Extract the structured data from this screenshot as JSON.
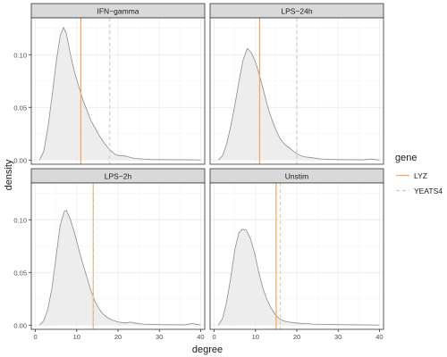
{
  "chart_data": {
    "type": "area",
    "xlabel": "degree",
    "ylabel": "density",
    "xlim": [
      -1,
      41
    ],
    "ylim": [
      -0.004,
      0.135
    ],
    "x_ticks": [
      0,
      10,
      20,
      30,
      40
    ],
    "y_ticks": [
      0.0,
      0.05,
      0.1
    ],
    "y_tick_labels": [
      "0.00",
      "0.05",
      "0.10"
    ],
    "grid": true,
    "legend": {
      "title": "gene",
      "placement": "right",
      "entries": [
        {
          "name": "LYZ",
          "color": "#F5A55A",
          "dash": "solid"
        },
        {
          "name": "YEATS4",
          "color": "#C5D9AE",
          "dash": "dashed"
        }
      ]
    },
    "panels": [
      {
        "title": "IFN−gamma",
        "density": [
          [
            1,
            0
          ],
          [
            2,
            0.008
          ],
          [
            3,
            0.03
          ],
          [
            4,
            0.06
          ],
          [
            5,
            0.092
          ],
          [
            6,
            0.118
          ],
          [
            6.8,
            0.126
          ],
          [
            7.5,
            0.12
          ],
          [
            8.5,
            0.1
          ],
          [
            9.5,
            0.083
          ],
          [
            10.5,
            0.07
          ],
          [
            11.5,
            0.057
          ],
          [
            12.5,
            0.047
          ],
          [
            13.5,
            0.037
          ],
          [
            14.5,
            0.03
          ],
          [
            15.5,
            0.023
          ],
          [
            16.5,
            0.017
          ],
          [
            17.5,
            0.012
          ],
          [
            18.5,
            0.008
          ],
          [
            19.5,
            0.005
          ],
          [
            20.5,
            0.004
          ],
          [
            21.5,
            0.004
          ],
          [
            22.5,
            0.003
          ],
          [
            24,
            0.0015
          ],
          [
            26,
            0.001
          ],
          [
            28,
            0.0005
          ],
          [
            30,
            0.0004
          ],
          [
            33,
            0.0003
          ],
          [
            36,
            0.0003
          ],
          [
            38,
            0.0002
          ],
          [
            40,
            0
          ]
        ],
        "lyz": 11,
        "yeats4": 18
      },
      {
        "title": "LPS−24h",
        "density": [
          [
            1,
            0
          ],
          [
            2,
            0.004
          ],
          [
            3,
            0.015
          ],
          [
            4,
            0.032
          ],
          [
            5,
            0.052
          ],
          [
            6,
            0.075
          ],
          [
            7,
            0.095
          ],
          [
            8,
            0.106
          ],
          [
            9,
            0.102
          ],
          [
            10,
            0.093
          ],
          [
            11,
            0.08
          ],
          [
            12,
            0.065
          ],
          [
            13,
            0.05
          ],
          [
            14,
            0.038
          ],
          [
            15,
            0.028
          ],
          [
            16,
            0.02
          ],
          [
            17,
            0.015
          ],
          [
            18,
            0.012
          ],
          [
            19,
            0.009
          ],
          [
            20,
            0.006
          ],
          [
            21,
            0.004
          ],
          [
            22,
            0.003
          ],
          [
            24,
            0.002
          ],
          [
            26,
            0.001
          ],
          [
            28,
            0.0006
          ],
          [
            30,
            0.0004
          ],
          [
            33,
            0.0003
          ],
          [
            36,
            0.0002
          ],
          [
            38,
            0.001
          ],
          [
            39,
            0.0005
          ],
          [
            40,
            0
          ]
        ],
        "lyz": 11,
        "yeats4": 20
      },
      {
        "title": "LPS−2h",
        "density": [
          [
            1,
            0
          ],
          [
            2,
            0.004
          ],
          [
            3,
            0.015
          ],
          [
            4,
            0.035
          ],
          [
            5,
            0.065
          ],
          [
            6,
            0.095
          ],
          [
            7,
            0.108
          ],
          [
            7.5,
            0.109
          ],
          [
            8.5,
            0.1
          ],
          [
            9.5,
            0.087
          ],
          [
            10.5,
            0.072
          ],
          [
            11.5,
            0.058
          ],
          [
            12.5,
            0.045
          ],
          [
            13.5,
            0.032
          ],
          [
            14.5,
            0.022
          ],
          [
            15.5,
            0.015
          ],
          [
            16.5,
            0.01
          ],
          [
            17.5,
            0.007
          ],
          [
            18.5,
            0.005
          ],
          [
            20,
            0.003
          ],
          [
            22,
            0.002
          ],
          [
            23,
            0.003
          ],
          [
            24,
            0.002
          ],
          [
            26,
            0.001
          ],
          [
            28,
            0.0008
          ],
          [
            30,
            0.0005
          ],
          [
            33,
            0.0004
          ],
          [
            36,
            0.0003
          ],
          [
            38,
            0.0015
          ],
          [
            39.5,
            0.0005
          ],
          [
            40,
            0
          ]
        ],
        "lyz": 14,
        "yeats4": 14
      },
      {
        "title": "Unstim",
        "density": [
          [
            1,
            0
          ],
          [
            2,
            0.006
          ],
          [
            3,
            0.022
          ],
          [
            4,
            0.045
          ],
          [
            5,
            0.072
          ],
          [
            6,
            0.088
          ],
          [
            6.8,
            0.091
          ],
          [
            7.8,
            0.09
          ],
          [
            8.8,
            0.082
          ],
          [
            9.8,
            0.068
          ],
          [
            10.8,
            0.05
          ],
          [
            11.8,
            0.035
          ],
          [
            12.8,
            0.024
          ],
          [
            13.8,
            0.016
          ],
          [
            14.8,
            0.01
          ],
          [
            15.8,
            0.006
          ],
          [
            16.8,
            0.004
          ],
          [
            18,
            0.003
          ],
          [
            20,
            0.002
          ],
          [
            22,
            0.0015
          ],
          [
            24,
            0.001
          ],
          [
            27,
            0.0008
          ],
          [
            30,
            0.0005
          ],
          [
            34,
            0.0003
          ],
          [
            37,
            0.0002
          ],
          [
            40,
            0
          ]
        ],
        "lyz": 15,
        "yeats4": 16
      }
    ]
  }
}
